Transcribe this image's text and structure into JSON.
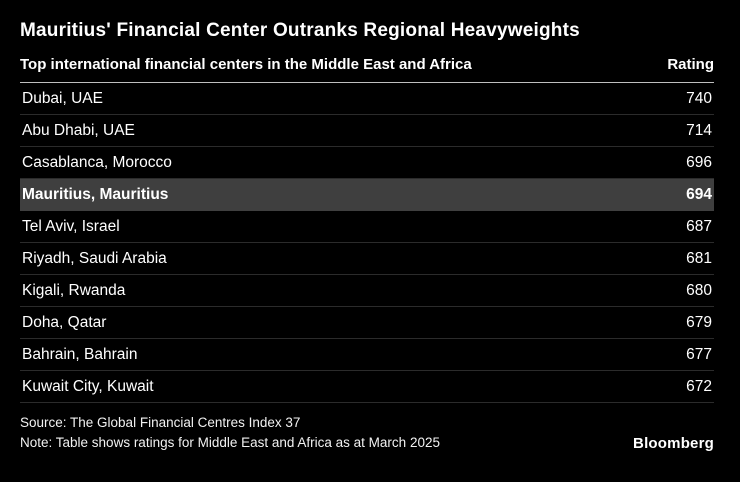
{
  "colors": {
    "background": "#000000",
    "text": "#ffffff",
    "highlight_row_bg": "#3f3f3f",
    "row_divider": "#2b2b2b",
    "header_rule": "#bfbfbf"
  },
  "header": {
    "title": "Mauritius' Financial Center Outranks Regional Heavyweights"
  },
  "table": {
    "left_header": "Top international financial centers in the Middle East and Africa",
    "right_header": "Rating",
    "rows": [
      {
        "city": "Dubai, UAE",
        "rating": "740",
        "highlight": false
      },
      {
        "city": "Abu Dhabi, UAE",
        "rating": "714",
        "highlight": false
      },
      {
        "city": "Casablanca, Morocco",
        "rating": "696",
        "highlight": false
      },
      {
        "city": "Mauritius, Mauritius",
        "rating": "694",
        "highlight": true
      },
      {
        "city": "Tel Aviv, Israel",
        "rating": "687",
        "highlight": false
      },
      {
        "city": "Riyadh, Saudi Arabia",
        "rating": "681",
        "highlight": false
      },
      {
        "city": "Kigali, Rwanda",
        "rating": "680",
        "highlight": false
      },
      {
        "city": "Doha, Qatar",
        "rating": "679",
        "highlight": false
      },
      {
        "city": "Bahrain, Bahrain",
        "rating": "677",
        "highlight": false
      },
      {
        "city": "Kuwait City, Kuwait",
        "rating": "672",
        "highlight": false
      }
    ]
  },
  "footer": {
    "source": "Source: The Global Financial Centres Index 37",
    "note": "Note: Table shows ratings for Middle East and Africa as at March 2025",
    "logo": "Bloomberg"
  },
  "chart_data": {
    "type": "table",
    "title": "Mauritius' Financial Center Outranks Regional Heavyweights",
    "columns": [
      "Top international financial centers in the Middle East and Africa",
      "Rating"
    ],
    "rows": [
      [
        "Dubai, UAE",
        740
      ],
      [
        "Abu Dhabi, UAE",
        714
      ],
      [
        "Casablanca, Morocco",
        696
      ],
      [
        "Mauritius, Mauritius",
        694
      ],
      [
        "Tel Aviv, Israel",
        687
      ],
      [
        "Riyadh, Saudi Arabia",
        681
      ],
      [
        "Kigali, Rwanda",
        680
      ],
      [
        "Doha, Qatar",
        679
      ],
      [
        "Bahrain, Bahrain",
        677
      ],
      [
        "Kuwait City, Kuwait",
        672
      ]
    ],
    "highlighted_row": "Mauritius, Mauritius",
    "source": "Source: The Global Financial Centres Index 37",
    "note": "Note: Table shows ratings for Middle East and Africa as at March 2025"
  }
}
